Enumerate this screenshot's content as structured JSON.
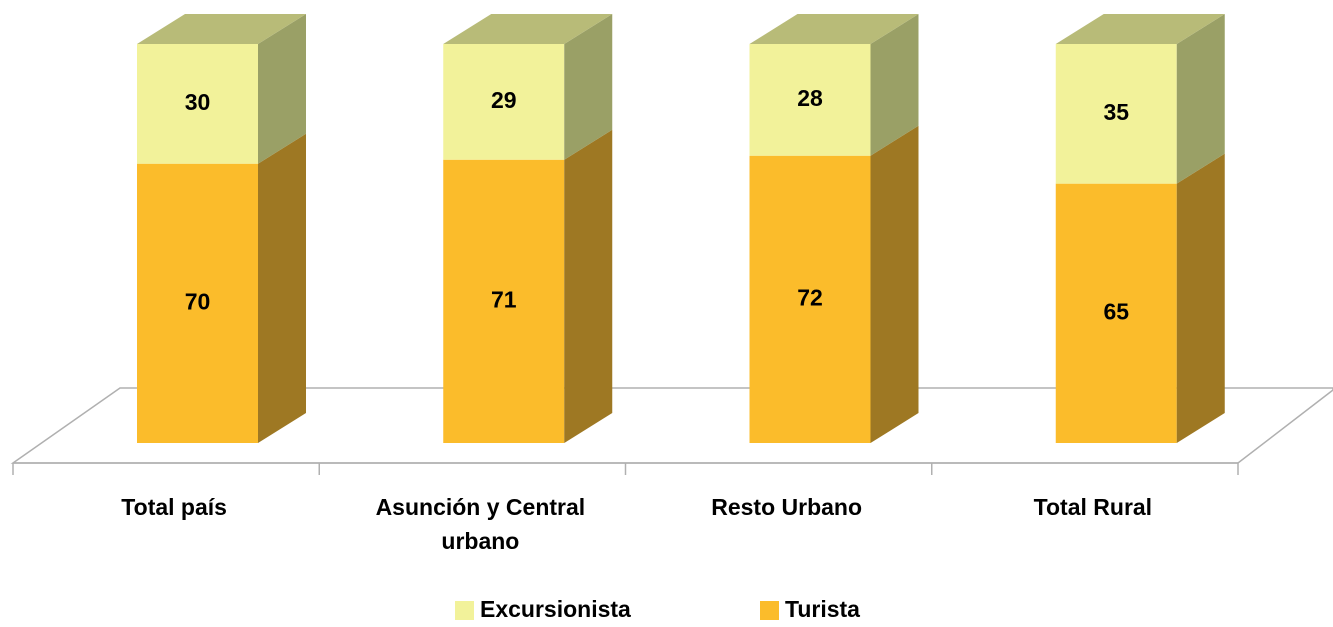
{
  "chart_data": {
    "type": "bar3d_stacked",
    "categories": [
      "Total país",
      "Asunción y Central urbano",
      "Resto Urbano",
      "Total Rural"
    ],
    "series": [
      {
        "name": "Excursionista",
        "color": "#F2F29A",
        "side_color": "#9AA066",
        "top_color": "#B8BB78",
        "values": [
          30,
          29,
          28,
          35
        ]
      },
      {
        "name": "Turista",
        "color": "#FBBC2B",
        "side_color": "#9E7823",
        "top_color": "#B8903A",
        "values": [
          70,
          71,
          72,
          65
        ]
      }
    ],
    "ylim": [
      0,
      100
    ]
  }
}
